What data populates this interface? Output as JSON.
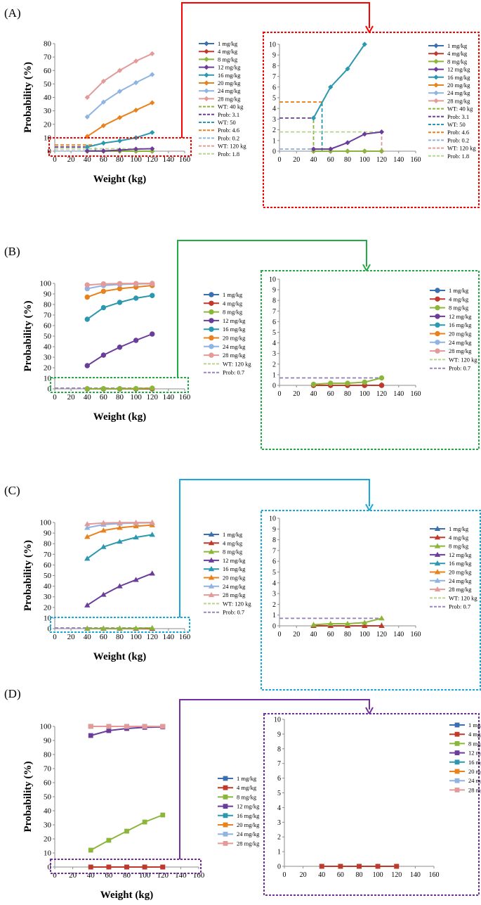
{
  "doses": [
    "1 mg/kg",
    "4 mg/kg",
    "8 mg/kg",
    "12 mg/kg",
    "16 mg/kg",
    "20 mg/kg",
    "24 mg/kg",
    "28 mg/kg"
  ],
  "dose_colors": [
    "#3a6fb0",
    "#c0392b",
    "#8bb63a",
    "#6a3d9a",
    "#2b98b0",
    "#e8821e",
    "#8fb4e3",
    "#e39a99"
  ],
  "weights": [
    40,
    60,
    80,
    100,
    120
  ],
  "chart_data": [
    {
      "type": "line",
      "panel_label": "(A)",
      "frame_color": "#ff0000",
      "marker": "diamond",
      "xlabel": "Weight (kg)",
      "ylabel": "Probability (%)",
      "x_ticks": [
        "0",
        "20",
        "40",
        "60",
        "80",
        "100",
        "120",
        "140",
        "160"
      ],
      "main_ylim": [
        0,
        80
      ],
      "main_y_ticks": [
        "0",
        "10",
        "20",
        "30",
        "40",
        "50",
        "60",
        "70",
        "80"
      ],
      "zoom_ylim": [
        0,
        10
      ],
      "zoom_y_ticks": [
        "0",
        "1",
        "2",
        "3",
        "4",
        "5",
        "6",
        "7",
        "8",
        "9",
        "10"
      ],
      "series": [
        {
          "name": "1 mg/kg",
          "values": [
            0,
            0,
            0,
            0,
            0
          ]
        },
        {
          "name": "4 mg/kg",
          "values": [
            0,
            0,
            0,
            0,
            0
          ]
        },
        {
          "name": "8 mg/kg",
          "values": [
            0,
            0,
            0,
            0,
            0
          ]
        },
        {
          "name": "12 mg/kg",
          "values": [
            0.2,
            0.2,
            0.8,
            1.6,
            1.8
          ]
        },
        {
          "name": "16 mg/kg",
          "values": [
            3.1,
            6,
            7.7,
            10,
            13.9
          ]
        },
        {
          "name": "20 mg/kg",
          "values": [
            11,
            19,
            25,
            30.5,
            36
          ]
        },
        {
          "name": "24 mg/kg",
          "values": [
            25.5,
            36.5,
            44.5,
            51,
            57
          ]
        },
        {
          "name": "28 mg/kg",
          "values": [
            40,
            52,
            60,
            67,
            72.5
          ]
        }
      ],
      "refs": [
        {
          "name": "WT: 40 kg",
          "color": "#8bb63a",
          "kind": "v",
          "x": 40,
          "y": 3.1
        },
        {
          "name": "Prob: 3.1",
          "color": "#6a3d9a",
          "kind": "h",
          "x": 40,
          "y": 3.1
        },
        {
          "name": "WT: 50",
          "color": "#2b98b0",
          "kind": "v",
          "x": 50,
          "y": 4.6
        },
        {
          "name": "Prob: 4.6",
          "color": "#e8821e",
          "kind": "h",
          "x": 50,
          "y": 4.6
        },
        {
          "name": "Prob: 0.2",
          "color": "#8fb4e3",
          "kind": "h",
          "x": 40,
          "y": 0.2
        },
        {
          "name": "WT: 120 kg",
          "color": "#e39a99",
          "kind": "v",
          "x": 120,
          "y": 1.8
        },
        {
          "name": "Prob: 1.8",
          "color": "#b7d58a",
          "kind": "h",
          "x": 120,
          "y": 1.8
        }
      ]
    },
    {
      "type": "line",
      "panel_label": "(B)",
      "frame_color": "#22aa44",
      "marker": "circle",
      "xlabel": "Weight (kg)",
      "ylabel": "Probability (%)",
      "x_ticks": [
        "0",
        "20",
        "40",
        "60",
        "80",
        "100",
        "120",
        "140",
        "160"
      ],
      "main_ylim": [
        0,
        100
      ],
      "main_y_ticks": [
        "0",
        "10",
        "20",
        "30",
        "40",
        "50",
        "60",
        "70",
        "80",
        "90",
        "100"
      ],
      "zoom_ylim": [
        0,
        10
      ],
      "zoom_y_ticks": [
        "0",
        "1",
        "2",
        "3",
        "4",
        "5",
        "6",
        "7",
        "8",
        "9",
        "10"
      ],
      "series": [
        {
          "name": "1 mg/kg",
          "values": [
            0,
            0,
            0,
            0,
            0
          ]
        },
        {
          "name": "4 mg/kg",
          "values": [
            0,
            0,
            0,
            0,
            0
          ]
        },
        {
          "name": "8 mg/kg",
          "values": [
            0.1,
            0.2,
            0.2,
            0.3,
            0.7
          ]
        },
        {
          "name": "12 mg/kg",
          "values": [
            22,
            32,
            39.5,
            46,
            52
          ]
        },
        {
          "name": "16 mg/kg",
          "values": [
            66,
            77,
            82,
            86,
            88.5
          ]
        },
        {
          "name": "20 mg/kg",
          "values": [
            87,
            92.5,
            95,
            96.5,
            98
          ]
        },
        {
          "name": "24 mg/kg",
          "values": [
            95,
            98,
            99,
            99.5,
            99.7
          ]
        },
        {
          "name": "28 mg/kg",
          "values": [
            98.5,
            99.5,
            99.8,
            99.9,
            100
          ]
        }
      ],
      "refs": [
        {
          "name": "WT: 120 kg",
          "color": "#b7d58a",
          "kind": "v",
          "x": 120,
          "y": 0.7
        },
        {
          "name": "Prob: 0.7",
          "color": "#9a86bf",
          "kind": "h",
          "x": 120,
          "y": 0.7
        }
      ]
    },
    {
      "type": "line",
      "panel_label": "(C)",
      "frame_color": "#1aa7e0",
      "marker": "triangle",
      "xlabel": "Weight (kg)",
      "ylabel": "Probability (%)",
      "x_ticks": [
        "0",
        "20",
        "40",
        "60",
        "80",
        "100",
        "120",
        "140",
        "160"
      ],
      "main_ylim": [
        0,
        100
      ],
      "main_y_ticks": [
        "0",
        "10",
        "20",
        "30",
        "40",
        "50",
        "60",
        "70",
        "80",
        "90",
        "100"
      ],
      "zoom_ylim": [
        0,
        10
      ],
      "zoom_y_ticks": [
        "0",
        "1",
        "2",
        "3",
        "4",
        "5",
        "6",
        "7",
        "8",
        "9",
        "10"
      ],
      "series": [
        {
          "name": "1 mg/kg",
          "values": [
            0,
            0,
            0,
            0,
            0
          ]
        },
        {
          "name": "4 mg/kg",
          "values": [
            0,
            0,
            0,
            0,
            0
          ]
        },
        {
          "name": "8 mg/kg",
          "values": [
            0.1,
            0.2,
            0.2,
            0.3,
            0.7
          ]
        },
        {
          "name": "12 mg/kg",
          "values": [
            22,
            32,
            40,
            46,
            52
          ]
        },
        {
          "name": "16 mg/kg",
          "values": [
            66,
            77,
            82,
            86,
            88.5
          ]
        },
        {
          "name": "20 mg/kg",
          "values": [
            86.5,
            92.5,
            95,
            96.5,
            97.5
          ]
        },
        {
          "name": "24 mg/kg",
          "values": [
            95,
            98,
            99,
            99.5,
            99.7
          ]
        },
        {
          "name": "28 mg/kg",
          "values": [
            98.5,
            99.5,
            99.8,
            99.9,
            100
          ]
        }
      ],
      "refs": [
        {
          "name": "WT: 120 kg",
          "color": "#b7d58a",
          "kind": "v",
          "x": 120,
          "y": 0.7
        },
        {
          "name": "Prob: 0.7",
          "color": "#9a86bf",
          "kind": "h",
          "x": 120,
          "y": 0.7
        }
      ]
    },
    {
      "type": "line",
      "panel_label": "(D)",
      "frame_color": "#7030a0",
      "marker": "square",
      "xlabel": "Weight (kg)",
      "ylabel": "Probability (%)",
      "x_ticks": [
        "0",
        "20",
        "40",
        "60",
        "80",
        "100",
        "120",
        "140",
        "160"
      ],
      "main_ylim": [
        0,
        100
      ],
      "main_y_ticks": [
        "0",
        "10",
        "20",
        "30",
        "40",
        "50",
        "60",
        "70",
        "80",
        "90",
        "100"
      ],
      "zoom_ylim": [
        0,
        10
      ],
      "zoom_y_ticks": [
        "0",
        "1",
        "2",
        "3",
        "4",
        "5",
        "6",
        "7",
        "8",
        "9",
        "10"
      ],
      "series": [
        {
          "name": "1 mg/kg",
          "values": [
            0,
            0,
            0,
            0,
            0
          ]
        },
        {
          "name": "4 mg/kg",
          "values": [
            0,
            0,
            0,
            0,
            0
          ]
        },
        {
          "name": "8 mg/kg",
          "values": [
            12,
            19,
            25.5,
            32,
            37
          ]
        },
        {
          "name": "12 mg/kg",
          "values": [
            93.5,
            97,
            98.5,
            99.3,
            99.6
          ]
        },
        {
          "name": "16 mg/kg",
          "values": [
            100,
            100,
            100,
            100,
            100
          ]
        },
        {
          "name": "20 mg/kg",
          "values": [
            100,
            100,
            100,
            100,
            100
          ]
        },
        {
          "name": "24 mg/kg",
          "values": [
            100,
            100,
            100,
            100,
            100
          ]
        },
        {
          "name": "28 mg/kg",
          "values": [
            100,
            100,
            100,
            100,
            100
          ]
        }
      ],
      "refs": []
    }
  ]
}
